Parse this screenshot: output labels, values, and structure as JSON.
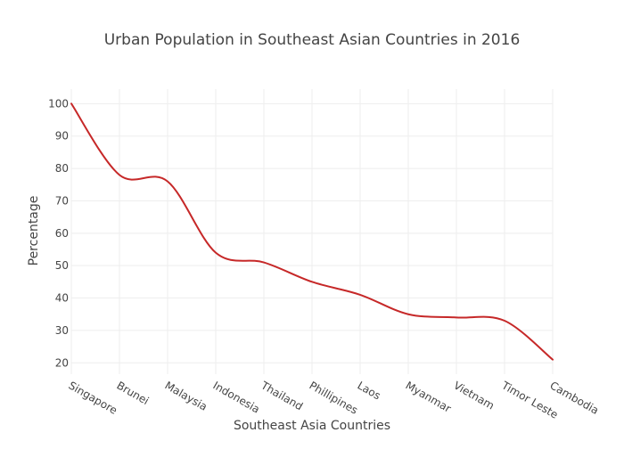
{
  "chart_data": {
    "type": "line",
    "title": "Urban Population in Southeast Asian Countries in 2016",
    "xlabel": "Southeast Asia Countries",
    "ylabel": "Percentage",
    "categories": [
      "Singapore",
      "Brunei",
      "Malaysia",
      "Indonesia",
      "Thailand",
      "Phillipines",
      "Laos",
      "Myanmar",
      "Vietnam",
      "Timor Leste",
      "Cambodia"
    ],
    "series": [
      {
        "values": [
          100,
          78,
          76,
          54,
          51,
          45,
          41,
          35,
          34,
          33,
          21
        ]
      }
    ],
    "yticks": [
      20,
      30,
      40,
      50,
      60,
      70,
      80,
      90,
      100
    ],
    "ylim": [
      16.5,
      104.5
    ],
    "grid": true,
    "line_color": "#c62828",
    "grid_color": "#eeeeee"
  }
}
